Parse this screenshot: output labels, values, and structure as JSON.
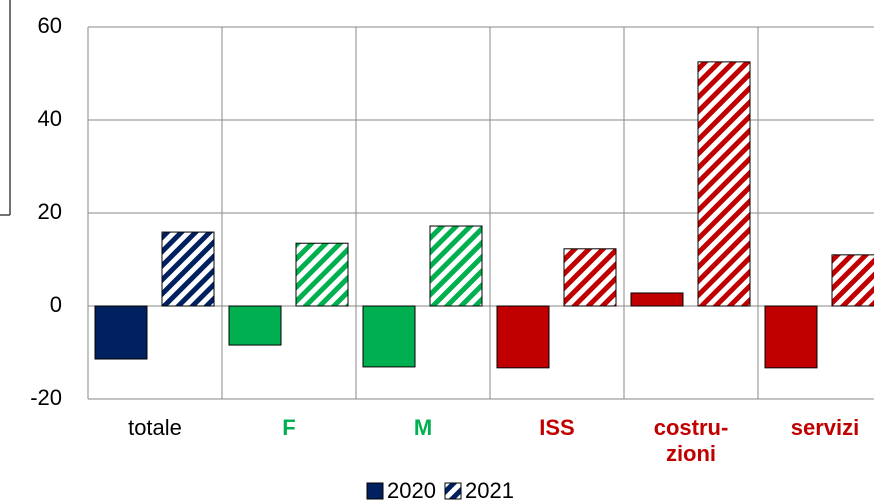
{
  "chart_data": {
    "type": "bar",
    "categories": [
      "totale",
      "F",
      "M",
      "ISS",
      "costru-\nzioni",
      "servizi"
    ],
    "category_colors": [
      "#002060",
      "#00b050",
      "#00b050",
      "#c00000",
      "#c00000",
      "#c00000"
    ],
    "label_colors": [
      "#000000",
      "#00b050",
      "#00b050",
      "#c00000",
      "#c00000",
      "#c00000"
    ],
    "series": [
      {
        "name": "2020",
        "color": "#002060",
        "fill": "solid",
        "values": [
          -11.4,
          -8.4,
          -13.1,
          -13.3,
          2.8,
          -13.3
        ]
      },
      {
        "name": "2021",
        "color": "#002060",
        "fill": "hatched",
        "values": [
          15.9,
          13.5,
          17.2,
          12.3,
          52.5,
          11.0
        ]
      }
    ],
    "ylim": [
      -20,
      60
    ],
    "yticks": [
      -20,
      0,
      20,
      40,
      60
    ],
    "grid": true,
    "legend": "bottom"
  }
}
